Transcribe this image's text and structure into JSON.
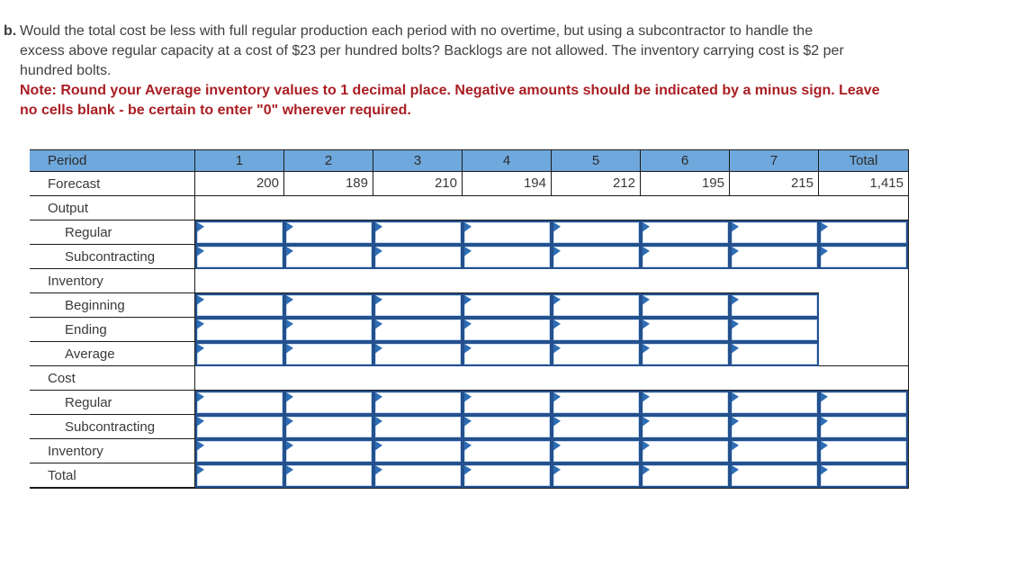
{
  "question": {
    "label": "b.",
    "lines": [
      "Would the total cost be less with full regular production each period with no overtime, but using a subcontractor to handle the",
      "excess above regular capacity at a cost of $23 per hundred bolts? Backlogs are not allowed. The inventory carrying cost is $2 per",
      "hundred bolts."
    ],
    "note_lines": [
      "Note: Round your Average inventory values to 1 decimal place. Negative amounts should be indicated by a minus sign. Leave",
      "no cells blank - be certain to enter \"0\" wherever required."
    ]
  },
  "table": {
    "header": {
      "period_label": "Period",
      "cols": [
        "1",
        "2",
        "3",
        "4",
        "5",
        "6",
        "7",
        "Total"
      ]
    },
    "rows": [
      {
        "label": "Forecast",
        "type": "values",
        "values": [
          "200",
          "189",
          "210",
          "194",
          "212",
          "195",
          "215",
          "1,415"
        ]
      },
      {
        "label": "Output",
        "type": "section"
      },
      {
        "label": "Regular",
        "type": "input",
        "cells": 8,
        "value": ""
      },
      {
        "label": "Subcontracting",
        "type": "input",
        "cells": 8,
        "value": ""
      },
      {
        "label": "Inventory",
        "type": "section"
      },
      {
        "label": "Beginning",
        "type": "input",
        "cells": 7,
        "value": ""
      },
      {
        "label": "Ending",
        "type": "input",
        "cells": 7,
        "value": ""
      },
      {
        "label": "Average",
        "type": "input",
        "cells": 7,
        "value": ""
      },
      {
        "label": "Cost",
        "type": "section"
      },
      {
        "label": "Regular",
        "type": "input",
        "cells": 8,
        "value": ""
      },
      {
        "label": "Subcontracting",
        "type": "input",
        "cells": 8,
        "value": ""
      },
      {
        "label": "Inventory",
        "type": "input",
        "cells": 8,
        "value": ""
      },
      {
        "label": "Total",
        "type": "input",
        "cells": 8,
        "value": ""
      }
    ]
  },
  "colors": {
    "header_blue": "#6fa8dc",
    "note_red": "#a91e23",
    "grid_black": "#1b1b1b",
    "input_border_blue": "#24518e",
    "input_inner_blue": "#c9ddf1",
    "flag_blue": "#2e6db4",
    "text_gray": "#3f3f3f"
  }
}
